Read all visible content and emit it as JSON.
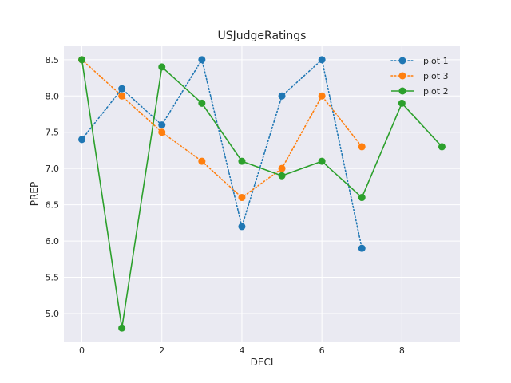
{
  "chart_data": {
    "type": "line",
    "title": "USJudgeRatings",
    "xlabel": "DECI",
    "ylabel": "PREP",
    "xlim": [
      -0.45,
      9.45
    ],
    "ylim": [
      4.615,
      8.685
    ],
    "xticks": [
      0,
      2,
      4,
      6,
      8
    ],
    "yticks": [
      5.0,
      5.5,
      6.0,
      6.5,
      7.0,
      7.5,
      8.0,
      8.5
    ],
    "grid": true,
    "legend_position": "top-right",
    "series": [
      {
        "name": "plot 1",
        "color": "#1f77b4",
        "linestyle": "dotted",
        "x": [
          0,
          1,
          2,
          3,
          4,
          5,
          6,
          7
        ],
        "y": [
          7.4,
          8.1,
          7.6,
          8.5,
          6.2,
          8.0,
          8.5,
          5.9
        ]
      },
      {
        "name": "plot 3",
        "color": "#ff7f0e",
        "linestyle": "dotted",
        "x": [
          0,
          1,
          2,
          3,
          4,
          5,
          6,
          7
        ],
        "y": [
          8.5,
          8.0,
          7.5,
          7.1,
          6.6,
          7.0,
          8.0,
          7.3
        ]
      },
      {
        "name": "plot 2",
        "color": "#2ca02c",
        "linestyle": "solid",
        "x": [
          0,
          1,
          2,
          3,
          4,
          5,
          6,
          7,
          8,
          9
        ],
        "y": [
          8.5,
          4.8,
          8.4,
          7.9,
          7.1,
          6.9,
          7.1,
          6.6,
          7.9,
          7.3
        ]
      }
    ]
  }
}
